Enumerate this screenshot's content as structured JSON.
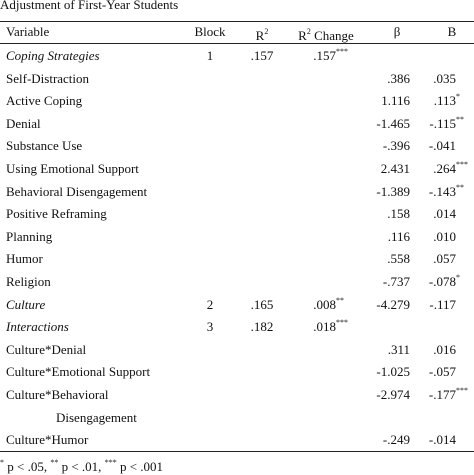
{
  "title": "Adjustment of First-Year Students",
  "header": {
    "variable": "Variable",
    "block": "Block",
    "r2": {
      "text": "R",
      "sup": "2"
    },
    "r2_change": {
      "text": "R",
      "sup": "2",
      "tail": " Change"
    },
    "beta": "β",
    "b": "B"
  },
  "rows": [
    {
      "variable": "Coping Strategies",
      "block": "1",
      "r2": ".157",
      "r2_change": ".157",
      "r2_change_sig": "***"
    },
    {
      "variable": "Self-Distraction",
      "beta": ".386",
      "b": ".035"
    },
    {
      "variable": "Active Coping",
      "beta": "1.116",
      "b": ".113",
      "b_sig": "*"
    },
    {
      "variable": "Denial",
      "beta": "-1.465",
      "b": "-.115",
      "b_sig": "**"
    },
    {
      "variable": "Substance Use",
      "beta": "-.396",
      "b": "-.041"
    },
    {
      "variable": "Using Emotional Support",
      "beta": "2.431",
      "b": ".264",
      "b_sig": "***"
    },
    {
      "variable": "Behavioral Disengagement",
      "beta": "-1.389",
      "b": "-.143",
      "b_sig": "**"
    },
    {
      "variable": "Positive Reframing",
      "beta": ".158",
      "b": ".014"
    },
    {
      "variable": "Planning",
      "beta": ".116",
      "b": ".010"
    },
    {
      "variable": "Humor",
      "beta": ".558",
      "b": ".057"
    },
    {
      "variable": "Religion",
      "beta": "-.737",
      "b": "-.078",
      "b_sig": "*"
    },
    {
      "variable": "Culture",
      "block": "2",
      "r2": ".165",
      "r2_change": ".008",
      "r2_change_sig": "**",
      "beta": "-4.279",
      "b": "-.117"
    },
    {
      "variable": "Interactions",
      "block": "3",
      "r2": ".182",
      "r2_change": ".018",
      "r2_change_sig": "***"
    },
    {
      "variable": "Culture*Denial",
      "beta": ".311",
      "b": ".016"
    },
    {
      "variable": "Culture*Emotional Support",
      "beta": "-1.025",
      "b": "-.057"
    },
    {
      "variable": "Culture*Behavioral",
      "variable_cont": "Disengagement",
      "beta": "-2.974",
      "b": "-.177",
      "b_sig": "***"
    },
    {
      "variable": "Culture*Humor",
      "beta": "-.249",
      "b": "-.014"
    }
  ],
  "footnote": [
    {
      "sup": "*",
      "text": " p < .05, "
    },
    {
      "sup": "**",
      "text": " p < .01, "
    },
    {
      "sup": "***",
      "text": " p < .001"
    }
  ]
}
